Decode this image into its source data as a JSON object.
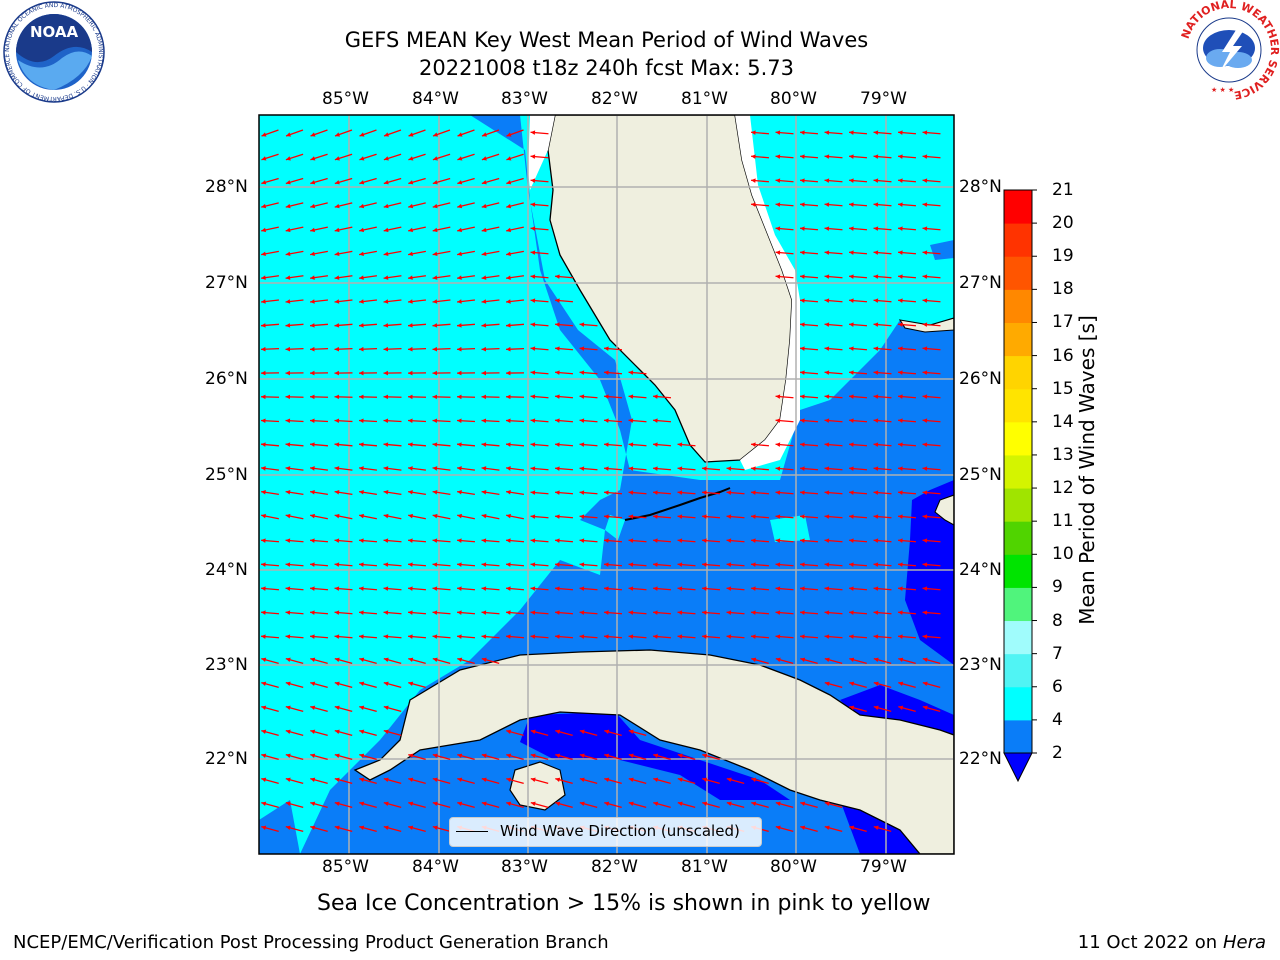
{
  "header": {
    "title_line1": "GEFS MEAN Key West Mean Period of Wind Waves",
    "title_line2": "20221008 t18z 240h fcst   Max: 5.73"
  },
  "logos": {
    "noaa_text": "NOAA",
    "noaa_ring_text": "NATIONAL OCEANIC AND ATMOSPHERIC ADMINISTRATION · U.S. DEPARTMENT OF COMMERCE",
    "nws_ring_text": "NATIONAL WEATHER SERVICE"
  },
  "map": {
    "lon_labels": [
      "85°W",
      "84°W",
      "83°W",
      "82°W",
      "81°W",
      "80°W",
      "79°W"
    ],
    "lat_labels": [
      "28°N",
      "27°N",
      "26°N",
      "25°N",
      "24°N",
      "23°N",
      "22°N"
    ],
    "legend_label": "Wind Wave Direction (unscaled)"
  },
  "colorbar": {
    "label": "Mean Period of Wind Waves [s]",
    "ticks": [
      "2",
      "4",
      "6",
      "7",
      "8",
      "9",
      "10",
      "11",
      "12",
      "13",
      "14",
      "15",
      "16",
      "17",
      "18",
      "19",
      "20",
      "21"
    ],
    "colors": [
      "#0a7df8",
      "#00ffff",
      "#50f4f4",
      "#a0fcfc",
      "#50f47c",
      "#00e400",
      "#50d400",
      "#a0e400",
      "#d4f400",
      "#ffff00",
      "#ffe400",
      "#ffd400",
      "#ffaa00",
      "#ff8800",
      "#ff5500",
      "#ff3300",
      "#ff0000"
    ],
    "under_color": "#0000ff"
  },
  "colors": {
    "land": "#efefdf",
    "deep_blue": "#0000ff",
    "mid_blue": "#0a7df8",
    "cyan": "#00ffff",
    "arrow": "#ff0000",
    "grid": "#b0b0b0"
  },
  "footer": {
    "caption": "Sea Ice Concentration > 15% is shown in pink to yellow",
    "left": "NCEP/EMC/Verification Post Processing Product Generation Branch",
    "date": "11 Oct 2022 on ",
    "machine": "Hera"
  }
}
